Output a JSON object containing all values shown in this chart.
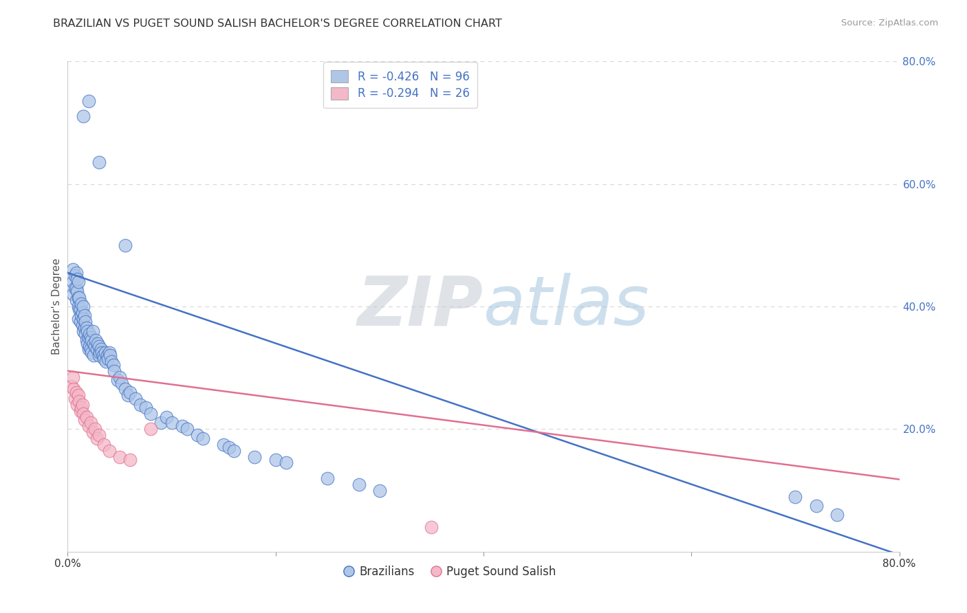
{
  "title": "BRAZILIAN VS PUGET SOUND SALISH BACHELOR'S DEGREE CORRELATION CHART",
  "source": "Source: ZipAtlas.com",
  "ylabel": "Bachelor's Degree",
  "xlim": [
    0.0,
    0.8
  ],
  "ylim": [
    0.0,
    0.8
  ],
  "yticks": [
    0.2,
    0.4,
    0.6,
    0.8
  ],
  "ytick_labels": [
    "20.0%",
    "40.0%",
    "60.0%",
    "80.0%"
  ],
  "xticks": [
    0.0,
    0.2,
    0.4,
    0.6,
    0.8
  ],
  "xtick_labels": [
    "0.0%",
    "",
    "",
    "",
    "80.0%"
  ],
  "legend_labels_bottom": [
    "Brazilians",
    "Puget Sound Salish"
  ],
  "blue_color": "#4472c4",
  "pink_color": "#e07090",
  "blue_fill": "#aec6e8",
  "pink_fill": "#f4b8c8",
  "blue_line_y_start": 0.455,
  "blue_line_y_end": -0.005,
  "pink_line_y_start": 0.295,
  "pink_line_y_end": 0.118,
  "background_color": "#ffffff",
  "grid_color": "#cccccc",
  "blue_scatter_x": [
    0.005,
    0.005,
    0.005,
    0.007,
    0.007,
    0.008,
    0.008,
    0.008,
    0.009,
    0.009,
    0.01,
    0.01,
    0.01,
    0.01,
    0.011,
    0.011,
    0.012,
    0.012,
    0.013,
    0.013,
    0.014,
    0.014,
    0.015,
    0.015,
    0.015,
    0.016,
    0.016,
    0.017,
    0.017,
    0.018,
    0.018,
    0.019,
    0.019,
    0.02,
    0.02,
    0.021,
    0.021,
    0.022,
    0.022,
    0.023,
    0.023,
    0.024,
    0.025,
    0.025,
    0.026,
    0.027,
    0.028,
    0.029,
    0.03,
    0.03,
    0.031,
    0.032,
    0.033,
    0.034,
    0.035,
    0.036,
    0.037,
    0.038,
    0.039,
    0.04,
    0.041,
    0.042,
    0.044,
    0.045,
    0.048,
    0.05,
    0.052,
    0.055,
    0.058,
    0.06,
    0.065,
    0.07,
    0.075,
    0.08,
    0.09,
    0.095,
    0.1,
    0.11,
    0.115,
    0.125,
    0.13,
    0.15,
    0.155,
    0.16,
    0.18,
    0.2,
    0.21,
    0.25,
    0.28,
    0.3,
    0.03,
    0.055,
    0.015,
    0.02,
    0.7,
    0.72,
    0.74
  ],
  "blue_scatter_y": [
    0.42,
    0.44,
    0.46,
    0.43,
    0.45,
    0.41,
    0.43,
    0.455,
    0.425,
    0.445,
    0.38,
    0.4,
    0.415,
    0.44,
    0.395,
    0.415,
    0.375,
    0.395,
    0.385,
    0.405,
    0.37,
    0.39,
    0.36,
    0.38,
    0.4,
    0.365,
    0.385,
    0.355,
    0.375,
    0.345,
    0.365,
    0.34,
    0.36,
    0.33,
    0.35,
    0.335,
    0.355,
    0.33,
    0.35,
    0.325,
    0.345,
    0.36,
    0.32,
    0.34,
    0.335,
    0.345,
    0.33,
    0.34,
    0.32,
    0.335,
    0.325,
    0.33,
    0.325,
    0.32,
    0.315,
    0.325,
    0.31,
    0.32,
    0.315,
    0.325,
    0.32,
    0.31,
    0.305,
    0.295,
    0.28,
    0.285,
    0.275,
    0.265,
    0.255,
    0.26,
    0.25,
    0.24,
    0.235,
    0.225,
    0.21,
    0.22,
    0.21,
    0.205,
    0.2,
    0.19,
    0.185,
    0.175,
    0.17,
    0.165,
    0.155,
    0.15,
    0.145,
    0.12,
    0.11,
    0.1,
    0.635,
    0.5,
    0.71,
    0.735,
    0.09,
    0.075,
    0.06
  ],
  "pink_scatter_x": [
    0.004,
    0.005,
    0.006,
    0.007,
    0.008,
    0.009,
    0.01,
    0.011,
    0.012,
    0.013,
    0.014,
    0.015,
    0.016,
    0.018,
    0.02,
    0.022,
    0.024,
    0.026,
    0.028,
    0.03,
    0.035,
    0.04,
    0.05,
    0.06,
    0.08,
    0.35
  ],
  "pink_scatter_y": [
    0.27,
    0.285,
    0.265,
    0.25,
    0.26,
    0.24,
    0.255,
    0.245,
    0.23,
    0.235,
    0.24,
    0.225,
    0.215,
    0.22,
    0.205,
    0.21,
    0.195,
    0.2,
    0.185,
    0.19,
    0.175,
    0.165,
    0.155,
    0.15,
    0.2,
    0.04
  ]
}
